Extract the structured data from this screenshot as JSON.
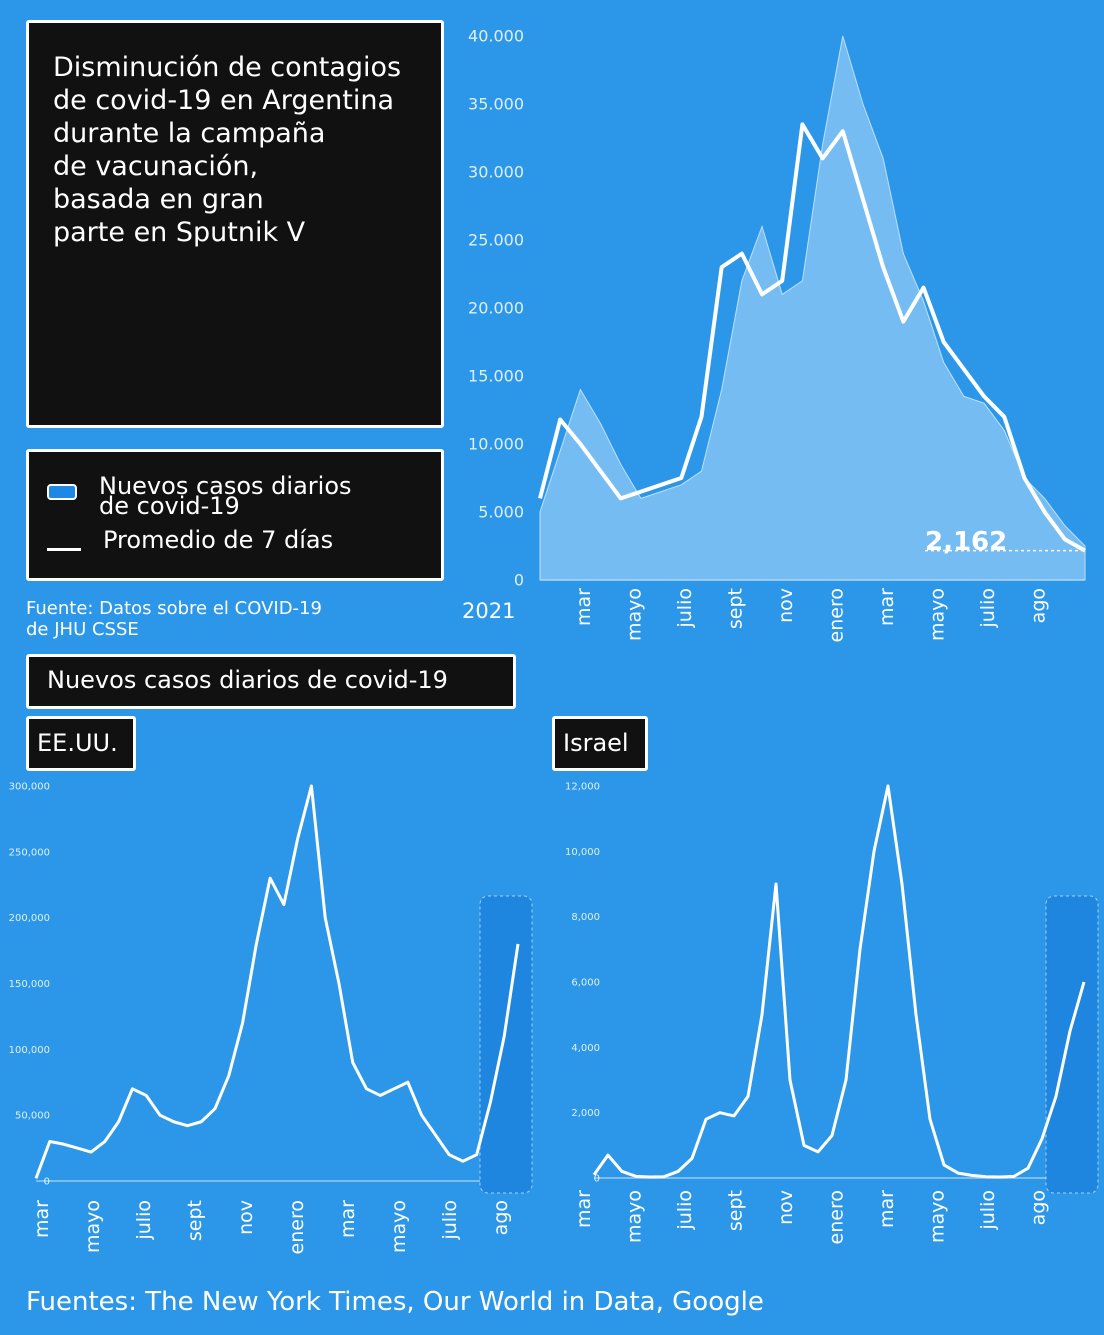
{
  "title": "Disminución de contagios\nde covid-19 en Argentina\ndurante la campaña\nde vacunación,\nbasada en gran\nparte en Sputnik V",
  "legend": {
    "bars": "Nuevos casos diarios\nde covid-19",
    "line": "Promedio de 7 días"
  },
  "source_main": "Fuente: Datos sobre el COVID-19\nde JHU CSSE",
  "year_label": "2021",
  "subtitle": "Nuevos casos diarios de covid-19",
  "panel_us_label": "EE.UU.",
  "panel_il_label": "Israel",
  "footer_source": "Fuentes: The New York Times, Our World in Data, Google",
  "colors": {
    "background": "#2c97e8",
    "box": "#111111",
    "area": "#8ec8f7",
    "line": "#ffffff"
  },
  "chart_data": [
    {
      "type": "area",
      "id": "argentina",
      "y_ticks": [
        "40.000",
        "35.000",
        "30.000",
        "25.000",
        "20.000",
        "15.000",
        "10.000",
        "5.000",
        "0"
      ],
      "ylim": [
        0,
        40000
      ],
      "x_ticks": [
        "mar",
        "mayo",
        "julio",
        "sept",
        "nov",
        "enero",
        "mar",
        "mayo",
        "julio",
        "ago"
      ],
      "annotation": "2,162",
      "series": [
        {
          "legend": "bars",
          "kind": "daily",
          "values": [
            5000,
            9500,
            14000,
            11500,
            8500,
            6000,
            6500,
            7000,
            8000,
            14000,
            22000,
            26000,
            21000,
            22000,
            32000,
            40000,
            35000,
            31000,
            24000,
            20500,
            16000,
            13500,
            13000,
            11000,
            7500,
            6000,
            4000,
            2500
          ]
        },
        {
          "legend": "line",
          "kind": "average",
          "values": [
            6000,
            11800,
            10000,
            8000,
            6000,
            6500,
            7000,
            7500,
            12000,
            23000,
            24000,
            21000,
            22000,
            33500,
            31000,
            33000,
            28000,
            23000,
            19000,
            21500,
            17500,
            15500,
            13500,
            12000,
            7500,
            5000,
            3000,
            2162
          ]
        }
      ]
    },
    {
      "type": "line",
      "id": "us",
      "y_ticks": [
        "300,000",
        "250,000",
        "200,000",
        "150,000",
        "100,000",
        "50,000",
        "0"
      ],
      "ylim": [
        0,
        300000
      ],
      "x_ticks": [
        "mar",
        "mayo",
        "julio",
        "sept",
        "nov",
        "enero",
        "mar",
        "mayo",
        "julio",
        "ago"
      ],
      "values": [
        2000,
        30000,
        28000,
        25000,
        22000,
        30000,
        45000,
        70000,
        65000,
        50000,
        45000,
        42000,
        45000,
        55000,
        80000,
        120000,
        180000,
        230000,
        210000,
        260000,
        300000,
        200000,
        150000,
        90000,
        70000,
        65000,
        70000,
        75000,
        50000,
        35000,
        20000,
        15000,
        20000,
        60000,
        110000,
        180000
      ]
    },
    {
      "type": "line",
      "id": "israel",
      "y_ticks": [
        "12,000",
        "10,000",
        "8,000",
        "6,000",
        "4,000",
        "2,000",
        "0"
      ],
      "ylim": [
        0,
        12000
      ],
      "x_ticks": [
        "mar",
        "mayo",
        "julio",
        "sept",
        "nov",
        "enero",
        "mar",
        "mayo",
        "julio",
        "ago"
      ],
      "values": [
        100,
        700,
        200,
        50,
        30,
        40,
        200,
        600,
        1800,
        2000,
        1900,
        2500,
        5000,
        9000,
        3000,
        1000,
        800,
        1300,
        3000,
        7000,
        10000,
        12000,
        9000,
        5000,
        1800,
        400,
        150,
        80,
        40,
        30,
        50,
        300,
        1200,
        2500,
        4500,
        6000
      ]
    }
  ]
}
